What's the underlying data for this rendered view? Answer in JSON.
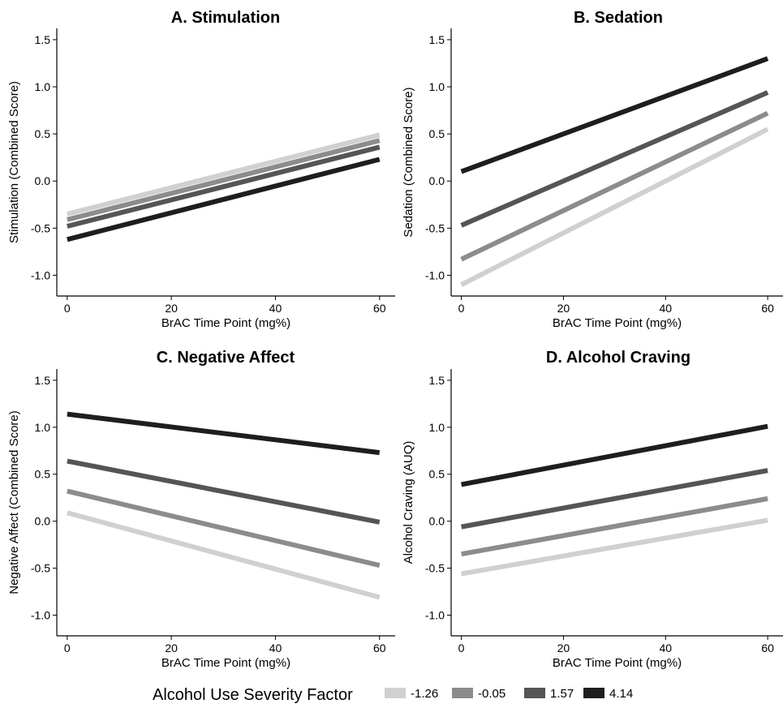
{
  "legend": {
    "title": "Alcohol Use Severity Factor",
    "entries": [
      {
        "label": "-1.26",
        "color": "#d0d0d0"
      },
      {
        "label": "-0.05",
        "color": "#8c8c8c"
      },
      {
        "label": "1.57",
        "color": "#555555"
      },
      {
        "label": "4.14",
        "color": "#1e1e1e"
      }
    ]
  },
  "chart_data": [
    {
      "type": "line",
      "title": "A. Stimulation",
      "xlabel": "BrAC Time Point (mg%)",
      "ylabel": "Stimulation (Combined Score)",
      "x": [
        0,
        60
      ],
      "xticks": [
        0,
        20,
        40,
        60
      ],
      "yticks": [
        -1.0,
        -0.5,
        0.0,
        0.5,
        1.0,
        1.5
      ],
      "ytick_labels": [
        "-1.0",
        "-0.5",
        "0.0",
        "0.5",
        "1.0",
        "1.5"
      ],
      "xlim": [
        -2,
        63
      ],
      "ylim": [
        -1.22,
        1.62
      ],
      "series": [
        {
          "name": "-1.26",
          "values": [
            -0.35,
            0.49
          ]
        },
        {
          "name": "-0.05",
          "values": [
            -0.41,
            0.43
          ]
        },
        {
          "name": "1.57",
          "values": [
            -0.48,
            0.36
          ]
        },
        {
          "name": "4.14",
          "values": [
            -0.62,
            0.23
          ]
        }
      ]
    },
    {
      "type": "line",
      "title": "B. Sedation",
      "xlabel": "BrAC Time Point (mg%)",
      "ylabel": "Sedation (Combined Score)",
      "x": [
        0,
        60
      ],
      "xticks": [
        0,
        20,
        40,
        60
      ],
      "yticks": [
        -1.0,
        -0.5,
        0.0,
        0.5,
        1.0,
        1.5
      ],
      "ytick_labels": [
        "-1.0",
        "-0.5",
        "0.0",
        "0.5",
        "1.0",
        "1.5"
      ],
      "xlim": [
        -2,
        63
      ],
      "ylim": [
        -1.22,
        1.62
      ],
      "series": [
        {
          "name": "-1.26",
          "values": [
            -1.1,
            0.55
          ]
        },
        {
          "name": "-0.05",
          "values": [
            -0.83,
            0.72
          ]
        },
        {
          "name": "1.57",
          "values": [
            -0.47,
            0.94
          ]
        },
        {
          "name": "4.14",
          "values": [
            0.1,
            1.3
          ]
        }
      ]
    },
    {
      "type": "line",
      "title": "C. Negative Affect",
      "xlabel": "BrAC Time Point (mg%)",
      "ylabel": "Negative Affect (Combined Score)",
      "x": [
        0,
        60
      ],
      "xticks": [
        0,
        20,
        40,
        60
      ],
      "yticks": [
        -1.0,
        -0.5,
        0.0,
        0.5,
        1.0,
        1.5
      ],
      "ytick_labels": [
        "-1.0",
        "-0.5",
        "0.0",
        "0.5",
        "1.0",
        "1.5"
      ],
      "xlim": [
        -2,
        63
      ],
      "ylim": [
        -1.22,
        1.62
      ],
      "series": [
        {
          "name": "-1.26",
          "values": [
            0.09,
            -0.81
          ]
        },
        {
          "name": "-0.05",
          "values": [
            0.32,
            -0.47
          ]
        },
        {
          "name": "1.57",
          "values": [
            0.64,
            -0.01
          ]
        },
        {
          "name": "4.14",
          "values": [
            1.14,
            0.73
          ]
        }
      ]
    },
    {
      "type": "line",
      "title": "D. Alcohol Craving",
      "xlabel": "BrAC Time Point (mg%)",
      "ylabel": "Alcohol Craving (AUQ)",
      "x": [
        0,
        60
      ],
      "xticks": [
        0,
        20,
        40,
        60
      ],
      "yticks": [
        -1.0,
        -0.5,
        0.0,
        0.5,
        1.0,
        1.5
      ],
      "ytick_labels": [
        "-1.0",
        "-0.5",
        "0.0",
        "0.5",
        "1.0",
        "1.5"
      ],
      "xlim": [
        -2,
        63
      ],
      "ylim": [
        -1.22,
        1.62
      ],
      "series": [
        {
          "name": "-1.26",
          "values": [
            -0.56,
            0.01
          ]
        },
        {
          "name": "-0.05",
          "values": [
            -0.35,
            0.24
          ]
        },
        {
          "name": "1.57",
          "values": [
            -0.06,
            0.54
          ]
        },
        {
          "name": "4.14",
          "values": [
            0.39,
            1.01
          ]
        }
      ]
    }
  ]
}
